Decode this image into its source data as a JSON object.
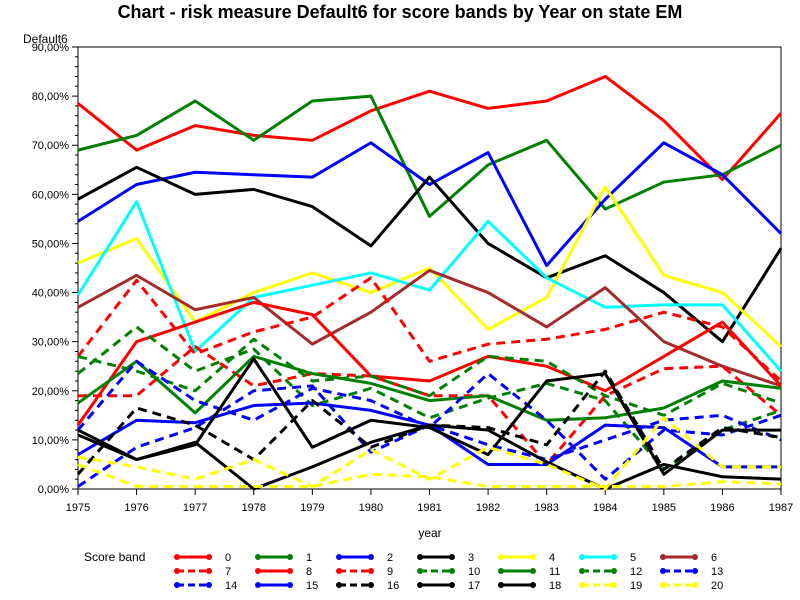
{
  "chart_data": {
    "type": "line",
    "title": "Chart - risk measure Default6 for score bands by Year on state EM",
    "ylabel": "Default6",
    "xlabel": "year",
    "legend_title": "Score band",
    "x": [
      1975,
      1976,
      1977,
      1978,
      1979,
      1980,
      1981,
      1982,
      1983,
      1984,
      1985,
      1986,
      1987
    ],
    "ylim": [
      0,
      90
    ],
    "yticks": [
      0,
      10,
      20,
      30,
      40,
      50,
      60,
      70,
      80,
      90
    ],
    "ytick_labels": [
      "0,00%",
      "10,00%",
      "20,00%",
      "30,00%",
      "40,00%",
      "50,00%",
      "60,00%",
      "70,00%",
      "80,00%",
      "90,00%"
    ],
    "series": [
      {
        "name": "0",
        "color": "#ff0000",
        "dash": "solid",
        "values": [
          78.5,
          69,
          74,
          72,
          71,
          77,
          81,
          77.5,
          79,
          84,
          75,
          63,
          76.5
        ]
      },
      {
        "name": "1",
        "color": "#008000",
        "dash": "solid",
        "values": [
          69,
          72,
          79,
          71,
          79,
          80,
          55.5,
          66,
          71,
          57,
          62.5,
          64,
          70
        ]
      },
      {
        "name": "2",
        "color": "#0000ff",
        "dash": "solid",
        "values": [
          54.5,
          62,
          64.5,
          64,
          63.5,
          70.5,
          62,
          68.5,
          45.5,
          59,
          70.5,
          64,
          52
        ]
      },
      {
        "name": "3",
        "color": "#000000",
        "dash": "solid",
        "values": [
          59,
          65.5,
          60,
          61,
          57.5,
          49.5,
          63.5,
          50,
          43,
          47.5,
          40,
          30,
          49
        ]
      },
      {
        "name": "4",
        "color": "#ffff00",
        "dash": "solid",
        "values": [
          46,
          51,
          34,
          40,
          44,
          40,
          45,
          32.5,
          39,
          61.5,
          43.5,
          40,
          29
        ]
      },
      {
        "name": "5",
        "color": "#00ffff",
        "dash": "solid",
        "values": [
          39.5,
          58.5,
          28,
          39,
          41.5,
          44,
          40.5,
          54.5,
          43,
          37,
          37.5,
          37.5,
          24
        ]
      },
      {
        "name": "6",
        "color": "#a52a2a",
        "dash": "solid",
        "values": [
          37,
          43.5,
          36.5,
          39,
          29.5,
          36,
          44.5,
          40,
          33,
          41,
          30,
          25,
          21
        ]
      },
      {
        "name": "7",
        "color": "#ff0000",
        "dash": "dashed",
        "values": [
          27,
          42.5,
          27.5,
          32,
          35,
          43,
          26,
          29.5,
          30.5,
          32.5,
          36,
          33,
          22
        ]
      },
      {
        "name": "8",
        "color": "#ff0000",
        "dash": "solid",
        "values": [
          13,
          30,
          34,
          38,
          35.5,
          23,
          22,
          27,
          25,
          20,
          27,
          34,
          21
        ]
      },
      {
        "name": "9",
        "color": "#ff0000",
        "dash": "dashed",
        "values": [
          19,
          19,
          29,
          21,
          23.5,
          23,
          19,
          19,
          5,
          19,
          24.5,
          25,
          15
        ]
      },
      {
        "name": "10",
        "color": "#008000",
        "dash": "dashed",
        "values": [
          27,
          24,
          20,
          30.5,
          22,
          23,
          19,
          27,
          26,
          19,
          15,
          21.5,
          17.5
        ]
      },
      {
        "name": "11",
        "color": "#008000",
        "dash": "solid",
        "values": [
          17.5,
          26,
          15.5,
          27,
          23.5,
          21.5,
          18,
          19,
          14,
          14.5,
          16.5,
          22,
          20.5
        ]
      },
      {
        "name": "12",
        "color": "#008000",
        "dash": "dashed",
        "values": [
          23.5,
          33,
          24,
          28.5,
          17,
          20.5,
          14.5,
          18.5,
          21.5,
          18,
          4,
          12,
          16
        ]
      },
      {
        "name": "13",
        "color": "#0000ff",
        "dash": "dashed",
        "values": [
          12,
          26,
          18,
          14,
          20.5,
          18,
          12.5,
          23.5,
          14,
          2,
          12,
          11,
          15
        ]
      },
      {
        "name": "14",
        "color": "#0000ff",
        "dash": "dashed",
        "values": [
          0.5,
          8.5,
          12.5,
          20,
          21,
          7.5,
          13,
          9,
          6,
          10,
          14,
          15,
          10
        ]
      },
      {
        "name": "15",
        "color": "#0000ff",
        "dash": "solid",
        "values": [
          7,
          14,
          13.5,
          17,
          17.5,
          16,
          13,
          5,
          5,
          13,
          12.5,
          4.5,
          4.5
        ]
      },
      {
        "name": "16",
        "color": "#000000",
        "dash": "dashed",
        "values": [
          3,
          16.5,
          13,
          6,
          18,
          8.5,
          13,
          12.5,
          9,
          24,
          4,
          12.5,
          10.5
        ]
      },
      {
        "name": "17",
        "color": "#000000",
        "dash": "solid",
        "values": [
          11,
          6,
          9,
          26.5,
          8.5,
          14,
          12.5,
          7,
          22,
          23.5,
          3,
          12,
          12
        ]
      },
      {
        "name": "18",
        "color": "#000000",
        "dash": "solid",
        "values": [
          12,
          6,
          9.5,
          0,
          4.5,
          9.5,
          13,
          12,
          5.5,
          0,
          5,
          2.5,
          2
        ]
      },
      {
        "name": "19",
        "color": "#ffff00",
        "dash": "dashed",
        "values": [
          6.5,
          4.5,
          2,
          6,
          0.5,
          8,
          2,
          8.5,
          5,
          0,
          14.5,
          4.5,
          4.5
        ]
      },
      {
        "name": "20",
        "color": "#ffff00",
        "dash": "dashed",
        "values": [
          5,
          0.5,
          0.5,
          0.5,
          0.5,
          3,
          2.5,
          0.5,
          0.5,
          0.5,
          0.5,
          1.5,
          1
        ]
      }
    ]
  }
}
